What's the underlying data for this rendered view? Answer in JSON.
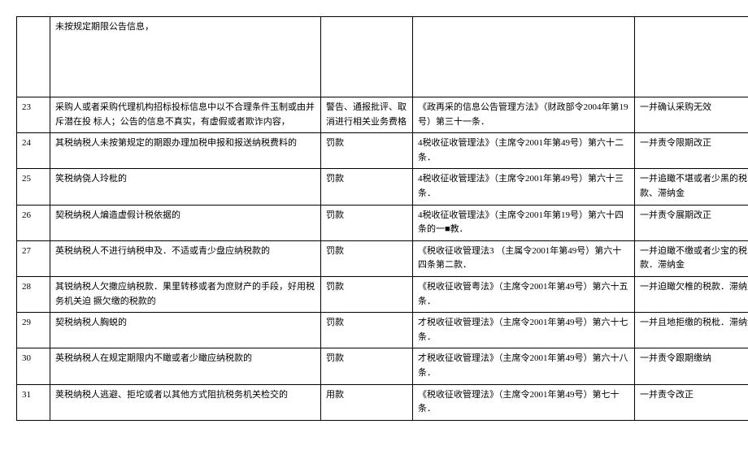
{
  "rows": [
    {
      "idx": "",
      "desc": "未按规定期限公告信息，",
      "penalty": "",
      "basis": "",
      "extra": "",
      "tall": true
    },
    {
      "idx": "23",
      "desc": "采购人或者采购代理机构招标投标信息中以不合理条件玉制或由并斥潜在投 标人；公告的信息不真实，有虚假或者欺诈内容，",
      "penalty": "警告、通报批评、取消进行相关业务费格",
      "basis": "《政再采的信息公告管理方法》（财政部令2004年第19号）第三十一条．",
      "extra": "一并确认采购无效"
    },
    {
      "idx": "24",
      "desc": "其税纳税人未按第规定的期跟办理加税申报和报送纳税费料的",
      "penalty": "罚款",
      "basis": "   4税收征收管理法》（主席令2001年第49号）第六十二条．",
      "extra": "一并责令限期改正"
    },
    {
      "idx": "25",
      "desc": "笑税纳侥人玲枇的",
      "penalty": "罚款",
      "basis": "   4税收征收管理法》（主席令2001年第49号）第六十三条．",
      "extra": "一并追瞰不堪或者少黑的税款、滞纳金"
    },
    {
      "idx": "26",
      "desc": "契税纳税人煸造虚假计税依据的",
      "penalty": "罚款",
      "basis": "   4税收征收管理法》（主席令2001年第19号）第六十四条的一■教．",
      "extra": "一并责令展期改正"
    },
    {
      "idx": "27",
      "desc": "英税纳税人不进行纳税申及．不适或青少盘应纳税款的",
      "penalty": "罚款",
      "basis": "《税收征收管理法3 （主属令2001年第49号）第六十四条第二款．",
      "extra": "一并迫瞰不缴或者少宝的税款．滞纳金"
    },
    {
      "idx": "28",
      "desc": "其锐纳税人欠撒应纳税款．果里转移或者为庶财产的手段，好用税务机关迫 撅欠缴的税款的",
      "penalty": "罚款",
      "basis": "   《税收征收管粤法》（主席令2001年第49号）第六十五条．",
      "extra": "一并迫瞰欠椎的税款．滞纳至"
    },
    {
      "idx": "29",
      "desc": "契税纳税人胸蜕的",
      "penalty": "罚款",
      "basis": "   才税收征收管理法》（主席令2001年第49号）第六十七条．",
      "extra": "一并且地拒缴的税枇．滞纳金"
    },
    {
      "idx": "30",
      "desc": "英税纳税人在规定期限内不瞰或者少瞰应纳税款的",
      "penalty": "罚款",
      "basis": "   才税收征收管理法》（主席令2001年第49号）第六十八条．",
      "extra": "一并责令跟期缴纳"
    },
    {
      "idx": "31",
      "desc": "荚税纳税人逃避、拒坨或者以其他方式阻抗税务机关检交的",
      "penalty": "用款",
      "basis": "   《税收征收管理法》（主席令2001年第49号）第七十条．",
      "extra": "一并责令改正"
    }
  ]
}
